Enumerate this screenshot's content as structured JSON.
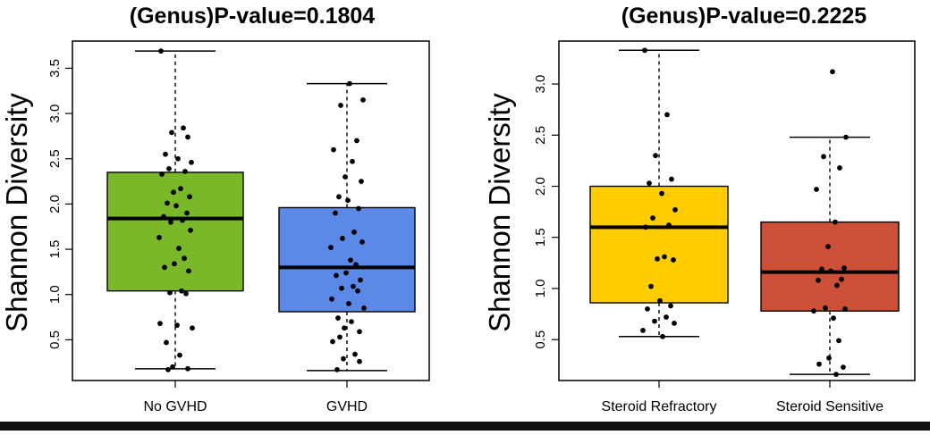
{
  "chart_data": [
    {
      "type": "box",
      "title": "(Genus)P-value=0.1804",
      "ylabel": "Shannon Diversity",
      "xlabel": "",
      "ylim": [
        0.05,
        3.8
      ],
      "yticks": [
        0.5,
        1.0,
        1.5,
        2.0,
        2.5,
        3.0,
        3.5
      ],
      "ytick_labels": [
        "0.5",
        "1.0",
        "1.5",
        "2.0",
        "2.5",
        "3.0",
        "3.5"
      ],
      "grid": false,
      "categories": [
        "No GVHD",
        "GVHD"
      ],
      "boxes": [
        {
          "name": "No GVHD",
          "color": "#79b829",
          "whisker_low": 0.18,
          "q1": 1.04,
          "median": 1.84,
          "q3": 2.35,
          "whisker_high": 3.69,
          "points": [
            3.69,
            2.84,
            2.79,
            2.74,
            2.55,
            2.5,
            2.46,
            2.39,
            2.36,
            2.33,
            2.17,
            2.13,
            2.08,
            2.01,
            1.98,
            1.9,
            1.86,
            1.82,
            1.8,
            1.71,
            1.63,
            1.51,
            1.4,
            1.34,
            1.3,
            1.26,
            1.04,
            1.02,
            1.01,
            0.68,
            0.66,
            0.63,
            0.47,
            0.33,
            0.2,
            0.18,
            0.17
          ]
        },
        {
          "name": "GVHD",
          "color": "#5b89e8",
          "whisker_low": 0.16,
          "q1": 0.81,
          "median": 1.3,
          "q3": 1.96,
          "whisker_high": 3.33,
          "points": [
            3.33,
            3.15,
            3.09,
            2.7,
            2.6,
            2.47,
            2.3,
            2.25,
            2.08,
            2.04,
            1.95,
            1.9,
            1.69,
            1.62,
            1.58,
            1.52,
            1.38,
            1.33,
            1.24,
            1.21,
            1.16,
            1.09,
            1.07,
            1.04,
            0.95,
            0.9,
            0.85,
            0.74,
            0.7,
            0.63,
            0.59,
            0.53,
            0.48,
            0.34,
            0.29,
            0.26,
            0.17
          ]
        }
      ]
    },
    {
      "type": "box",
      "title": "(Genus)P-value=0.2225",
      "ylabel": "Shannon Diversity",
      "xlabel": "",
      "ylim": [
        0.1,
        3.42
      ],
      "yticks": [
        0.5,
        1.0,
        1.5,
        2.0,
        2.5,
        3.0
      ],
      "ytick_labels": [
        "0.5",
        "1.0",
        "1.5",
        "2.0",
        "2.5",
        "3.0"
      ],
      "grid": false,
      "categories": [
        "Steroid Refractory",
        "Steroid Sensitive"
      ],
      "boxes": [
        {
          "name": "Steroid Refractory",
          "color": "#ffcc00",
          "whisker_low": 0.53,
          "q1": 0.86,
          "median": 1.6,
          "q3": 2.0,
          "whisker_high": 3.33,
          "points": [
            3.33,
            2.7,
            2.3,
            2.07,
            2.03,
            1.93,
            1.77,
            1.69,
            1.62,
            1.6,
            1.31,
            1.29,
            1.28,
            1.02,
            0.88,
            0.83,
            0.8,
            0.72,
            0.68,
            0.66,
            0.59,
            0.53
          ]
        },
        {
          "name": "Steroid Sensitive",
          "color": "#cc5038",
          "whisker_low": 0.16,
          "q1": 0.78,
          "median": 1.16,
          "q3": 1.65,
          "whisker_high": 2.48,
          "points": [
            3.12,
            2.48,
            2.29,
            2.18,
            1.97,
            1.65,
            1.41,
            1.2,
            1.19,
            1.17,
            1.09,
            1.08,
            1.03,
            0.81,
            0.8,
            0.78,
            0.71,
            0.49,
            0.32,
            0.26,
            0.23,
            0.16
          ]
        }
      ]
    }
  ]
}
